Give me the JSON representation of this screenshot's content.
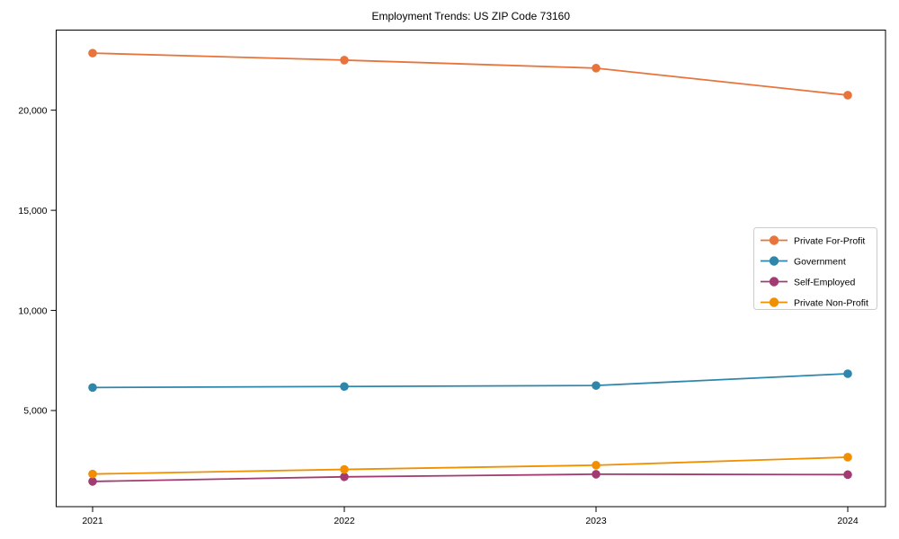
{
  "chart_data": {
    "type": "line",
    "title": "Employment Trends: US ZIP Code 73160",
    "xlabel": "",
    "ylabel": "",
    "categories": [
      "2021",
      "2022",
      "2023",
      "2024"
    ],
    "x": [
      2021,
      2022,
      2023,
      2024
    ],
    "series": [
      {
        "name": "Private For-Profit",
        "color": "#E8743B",
        "values": [
          22850,
          22500,
          22100,
          20750
        ]
      },
      {
        "name": "Government",
        "color": "#2E86AB",
        "values": [
          6150,
          6200,
          6250,
          6840
        ]
      },
      {
        "name": "Self-Employed",
        "color": "#A23B72",
        "values": [
          1460,
          1690,
          1820,
          1800
        ]
      },
      {
        "name": "Private Non-Profit",
        "color": "#F18F01",
        "values": [
          1830,
          2060,
          2270,
          2670
        ]
      }
    ],
    "yticks": [
      5000,
      10000,
      15000,
      20000
    ],
    "ytick_labels": [
      "5,000",
      "10,000",
      "15,000",
      "20,000"
    ],
    "ylim": [
      200,
      24000
    ],
    "grid": false,
    "marker": "circle",
    "legend_position": "center-right",
    "colors": {
      "axis": "#000000",
      "legend_border": "#cccccc",
      "background": "#ffffff"
    }
  }
}
